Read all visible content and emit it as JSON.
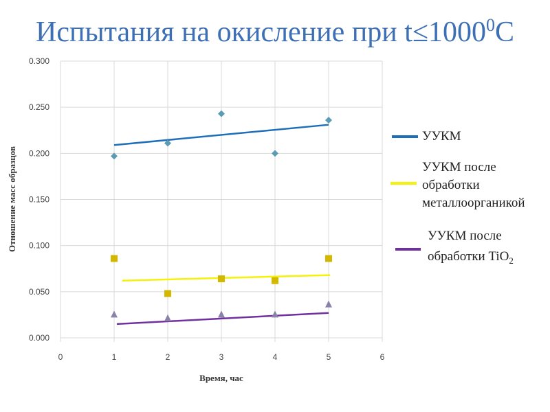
{
  "title": {
    "main": "Испытания на окисление при t≤1000",
    "sup": "0",
    "tail": "C"
  },
  "chart_data": {
    "type": "scatter",
    "title": "Испытания на окисление при t≤1000⁰C",
    "xlabel": "Время, час",
    "ylabel": "Отношение масс образцов",
    "xlim": [
      0,
      6
    ],
    "ylim": [
      0,
      0.3
    ],
    "xticks": [
      "0",
      "1",
      "2",
      "3",
      "4",
      "5",
      "6"
    ],
    "yticks": [
      "0.000",
      "0.050",
      "0.100",
      "0.150",
      "0.200",
      "0.250",
      "0.300"
    ],
    "grid": true,
    "legend_position": "right",
    "x": [
      1,
      2,
      3,
      4,
      5
    ],
    "series": [
      {
        "name": "УУКМ",
        "marker": "diamond",
        "marker_color": "#5b9bb5",
        "trend_color": "#1f6fb8",
        "values": [
          0.197,
          0.211,
          0.243,
          0.2,
          0.236
        ],
        "trend": [
          [
            1,
            0.209
          ],
          [
            5,
            0.231
          ]
        ]
      },
      {
        "name": "УУКМ после обработки металлоорганикой",
        "name_lines": [
          "УУКМ после",
          "обработки",
          "металлоорганикой"
        ],
        "marker": "square",
        "marker_color": "#d4b800",
        "trend_color": "#f5f20a",
        "values": [
          0.086,
          0.048,
          0.064,
          0.062,
          0.086
        ],
        "trend": [
          [
            1.15,
            0.062
          ],
          [
            5.03,
            0.068
          ]
        ]
      },
      {
        "name": "УУКМ после обработки TiO2",
        "name_lines": [
          "УУКМ после",
          "обработки TiO",
          "2"
        ],
        "marker": "triangle",
        "marker_color": "#8a82a8",
        "trend_color": "#7030a0",
        "values": [
          0.025,
          0.021,
          0.025,
          0.025,
          0.036
        ],
        "trend": [
          [
            1.05,
            0.015
          ],
          [
            5,
            0.027
          ]
        ]
      }
    ]
  }
}
